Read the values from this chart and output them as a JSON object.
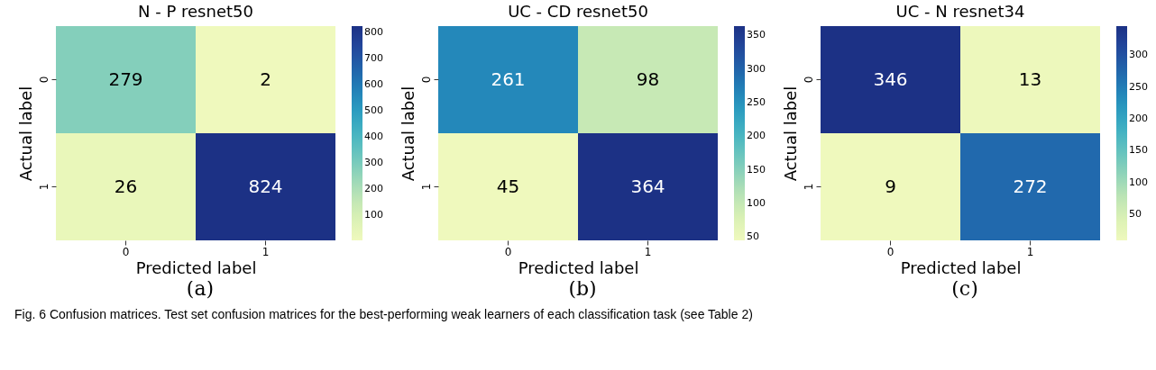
{
  "chart_data": [
    {
      "type": "heatmap",
      "title": "N - P  resnet50",
      "xlabel": "Predicted label",
      "ylabel": "Actual label",
      "categories": [
        "0",
        "1"
      ],
      "y_categories": [
        "0",
        "1"
      ],
      "cells": [
        [
          279,
          2
        ],
        [
          26,
          824
        ]
      ],
      "data_labels": true,
      "clim": [
        2,
        824
      ],
      "cticks": [
        100,
        200,
        300,
        400,
        500,
        600,
        700,
        800
      ],
      "annotations": [
        "(a)",
        "Fig. 6  Confusion matrices. Test set confusion matrices for the best-performing weak learners of each classification task (see Table 2)"
      ]
    },
    {
      "type": "heatmap",
      "title": "UC - CD  resnet50",
      "xlabel": "Predicted label",
      "ylabel": "Actual label",
      "categories": [
        "0",
        "1"
      ],
      "y_categories": [
        "0",
        "1"
      ],
      "cells": [
        [
          261,
          98
        ],
        [
          45,
          364
        ]
      ],
      "data_labels": true,
      "clim": [
        45,
        364
      ],
      "cticks": [
        50,
        100,
        150,
        200,
        250,
        300,
        350
      ],
      "annotations": [
        "(b)"
      ]
    },
    {
      "type": "heatmap",
      "title": "UC - N  resnet34",
      "xlabel": "Predicted label",
      "ylabel": "Actual label",
      "categories": [
        "0",
        "1"
      ],
      "y_categories": [
        "0",
        "1"
      ],
      "cells": [
        [
          346,
          13
        ],
        [
          9,
          272
        ]
      ],
      "data_labels": true,
      "clim": [
        9,
        346
      ],
      "cticks": [
        50,
        100,
        150,
        200,
        250,
        300
      ],
      "annotations": [
        "(c)"
      ]
    }
  ]
}
